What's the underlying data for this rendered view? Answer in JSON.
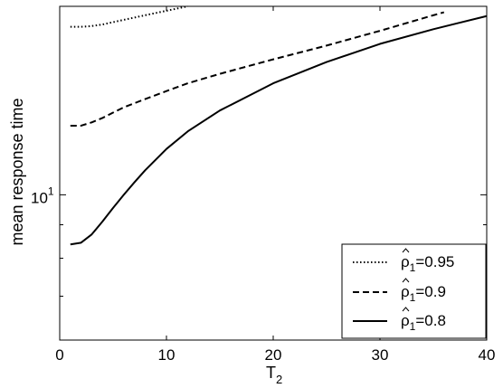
{
  "chart_data": {
    "type": "line",
    "title": "",
    "xlabel": "T",
    "xlabel_sub": "2",
    "ylabel": "mean response time",
    "xlim": [
      0,
      40
    ],
    "ylim": [
      6.0,
      19.4
    ],
    "y_scale": "log",
    "grid": false,
    "legend_position": "bottom-right",
    "x_ticks": [
      {
        "value": 0,
        "label": "0"
      },
      {
        "value": 10,
        "label": "10"
      },
      {
        "value": 20,
        "label": "20"
      },
      {
        "value": 30,
        "label": "30"
      },
      {
        "value": 40,
        "label": "40"
      }
    ],
    "y_ticks": [
      {
        "value": 10,
        "base": "10",
        "exp": "1"
      }
    ],
    "y_minor_ticks": [
      7,
      8,
      9
    ],
    "series": [
      {
        "name": "ρ̂1=0.95",
        "legend_symbol": "ρ",
        "legend_sub": "1",
        "legend_value": "=0.95",
        "style": "dotted",
        "x": [
          1,
          2,
          3,
          4,
          5,
          6,
          7,
          8,
          9,
          10,
          11,
          12
        ],
        "y": [
          18.05,
          18.05,
          18.1,
          18.2,
          18.35,
          18.5,
          18.65,
          18.8,
          18.95,
          19.1,
          19.25,
          19.4
        ]
      },
      {
        "name": "ρ̂1=0.9",
        "legend_symbol": "ρ",
        "legend_sub": "1",
        "legend_value": "=0.9",
        "style": "dashed",
        "x": [
          1,
          2,
          3,
          4,
          5,
          6,
          8,
          10,
          12,
          15,
          20,
          25,
          30,
          35,
          36
        ],
        "y": [
          12.75,
          12.75,
          12.9,
          13.1,
          13.35,
          13.6,
          14.0,
          14.4,
          14.8,
          15.3,
          16.1,
          16.9,
          17.8,
          18.8,
          19.0
        ]
      },
      {
        "name": "ρ̂1=0.8",
        "legend_symbol": "ρ",
        "legend_sub": "1",
        "legend_value": "=0.8",
        "style": "solid",
        "x": [
          1,
          2,
          3,
          4,
          5,
          6,
          7,
          8,
          10,
          12,
          15,
          20,
          25,
          30,
          35,
          40
        ],
        "y": [
          8.4,
          8.45,
          8.7,
          9.1,
          9.55,
          10.0,
          10.45,
          10.9,
          11.75,
          12.5,
          13.45,
          14.8,
          15.95,
          17.0,
          17.9,
          18.75
        ]
      }
    ]
  }
}
